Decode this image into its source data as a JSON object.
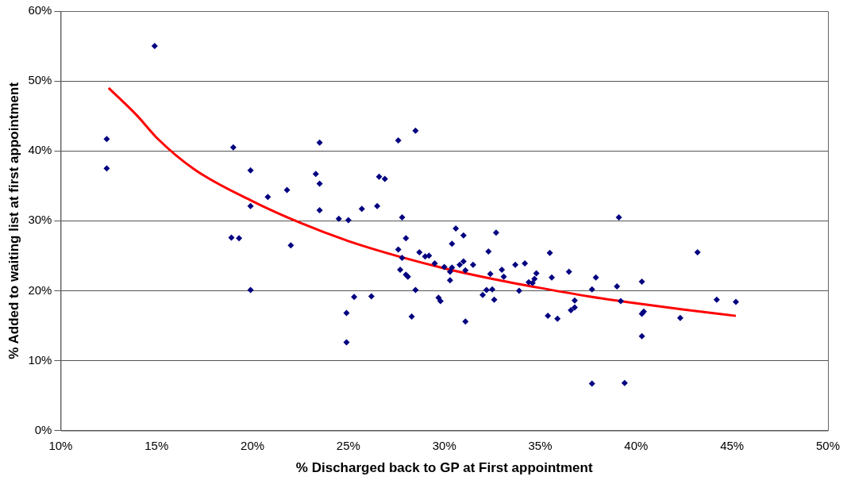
{
  "chart_data": {
    "type": "scatter",
    "xlabel": "% Discharged back to GP at First appointment",
    "ylabel": "% Added to waiting list at first appointment",
    "xlim": [
      10,
      50
    ],
    "xticks": [
      {
        "value": 10,
        "label": "10%"
      },
      {
        "value": 15,
        "label": "15%"
      },
      {
        "value": 20,
        "label": "20%"
      },
      {
        "value": 25,
        "label": "25%"
      },
      {
        "value": 30,
        "label": "30%"
      },
      {
        "value": 35,
        "label": "35%"
      },
      {
        "value": 40,
        "label": "40%"
      },
      {
        "value": 45,
        "label": "45%"
      },
      {
        "value": 50,
        "label": "50%"
      }
    ],
    "ylim": [
      0,
      60
    ],
    "yticks": [
      {
        "value": 0,
        "label": "0%"
      },
      {
        "value": 10,
        "label": "10%"
      },
      {
        "value": 20,
        "label": "20%"
      },
      {
        "value": 30,
        "label": "30%"
      },
      {
        "value": 40,
        "label": "40%"
      },
      {
        "value": 50,
        "label": "50%"
      },
      {
        "value": 60,
        "label": "60%"
      }
    ],
    "grid": "y",
    "legend": false,
    "marker": "diamond",
    "series": [
      {
        "color": "#000080",
        "x": [
          12.4,
          12.4,
          14.9,
          19.0,
          19.9,
          23.5,
          23.3,
          23.5,
          21.8,
          20.8,
          19.9,
          23.5,
          24.5,
          18.9,
          19.3,
          22.0,
          19.9,
          24.9,
          24.9,
          27.6,
          28.5,
          26.6,
          26.9,
          25.7,
          26.5,
          25.0,
          27.8,
          28.0,
          27.6,
          27.8,
          27.7,
          28.0,
          28.1,
          28.5,
          28.7,
          29.0,
          29.2,
          29.5,
          30.0,
          30.4,
          30.3,
          30.3,
          30.4,
          30.6,
          31.0,
          30.8,
          31.0,
          31.1,
          31.5,
          32.3,
          32.7,
          32.4,
          33.0,
          33.1,
          33.7,
          34.2,
          34.4,
          34.6,
          34.7,
          34.8,
          33.9,
          32.2,
          32.5,
          32.0,
          32.6,
          29.7,
          29.8,
          31.1,
          28.3,
          25.3,
          26.2,
          35.5,
          35.6,
          35.4,
          43.2,
          36.5,
          37.9,
          40.3,
          39.0,
          37.7,
          36.8,
          39.2,
          36.6,
          36.8,
          35.9,
          40.3,
          40.4,
          42.3,
          44.2,
          45.2,
          40.3,
          37.7,
          39.4,
          39.1
        ],
        "values": [
          41.7,
          37.5,
          55.0,
          40.5,
          37.2,
          41.2,
          36.7,
          35.3,
          34.4,
          33.4,
          32.1,
          31.5,
          30.3,
          27.6,
          27.5,
          26.5,
          20.1,
          16.8,
          12.6,
          41.5,
          42.9,
          36.3,
          36.0,
          31.7,
          32.1,
          30.1,
          30.5,
          27.5,
          25.9,
          24.7,
          23.0,
          22.3,
          22.0,
          20.1,
          25.5,
          24.9,
          25.0,
          23.9,
          23.4,
          23.3,
          22.7,
          21.5,
          26.7,
          28.9,
          27.9,
          23.7,
          24.2,
          22.9,
          23.7,
          25.6,
          28.3,
          22.4,
          23.0,
          22.0,
          23.7,
          23.9,
          21.2,
          21.1,
          21.7,
          22.5,
          20.0,
          20.1,
          20.2,
          19.4,
          18.7,
          19.0,
          18.5,
          15.6,
          16.3,
          19.1,
          19.2,
          25.4,
          21.9,
          16.4,
          25.5,
          22.7,
          21.9,
          21.3,
          20.6,
          20.2,
          18.6,
          18.5,
          17.2,
          17.6,
          16.0,
          16.7,
          17.0,
          16.1,
          18.7,
          18.4,
          13.5,
          6.7,
          6.8,
          30.5
        ]
      },
      {
        "type": "line",
        "color": "#ff0000",
        "marker": "none",
        "x": [
          12.5,
          14,
          15,
          17,
          20,
          22.5,
          25,
          27.5,
          30,
          32.5,
          35,
          37.5,
          40,
          42.5,
          45.2
        ],
        "values": [
          49,
          45,
          41.9,
          37.3,
          32.8,
          29.7,
          27.1,
          25.0,
          23.2,
          21.7,
          20.4,
          19.2,
          18.2,
          17.3,
          16.4
        ]
      }
    ]
  }
}
